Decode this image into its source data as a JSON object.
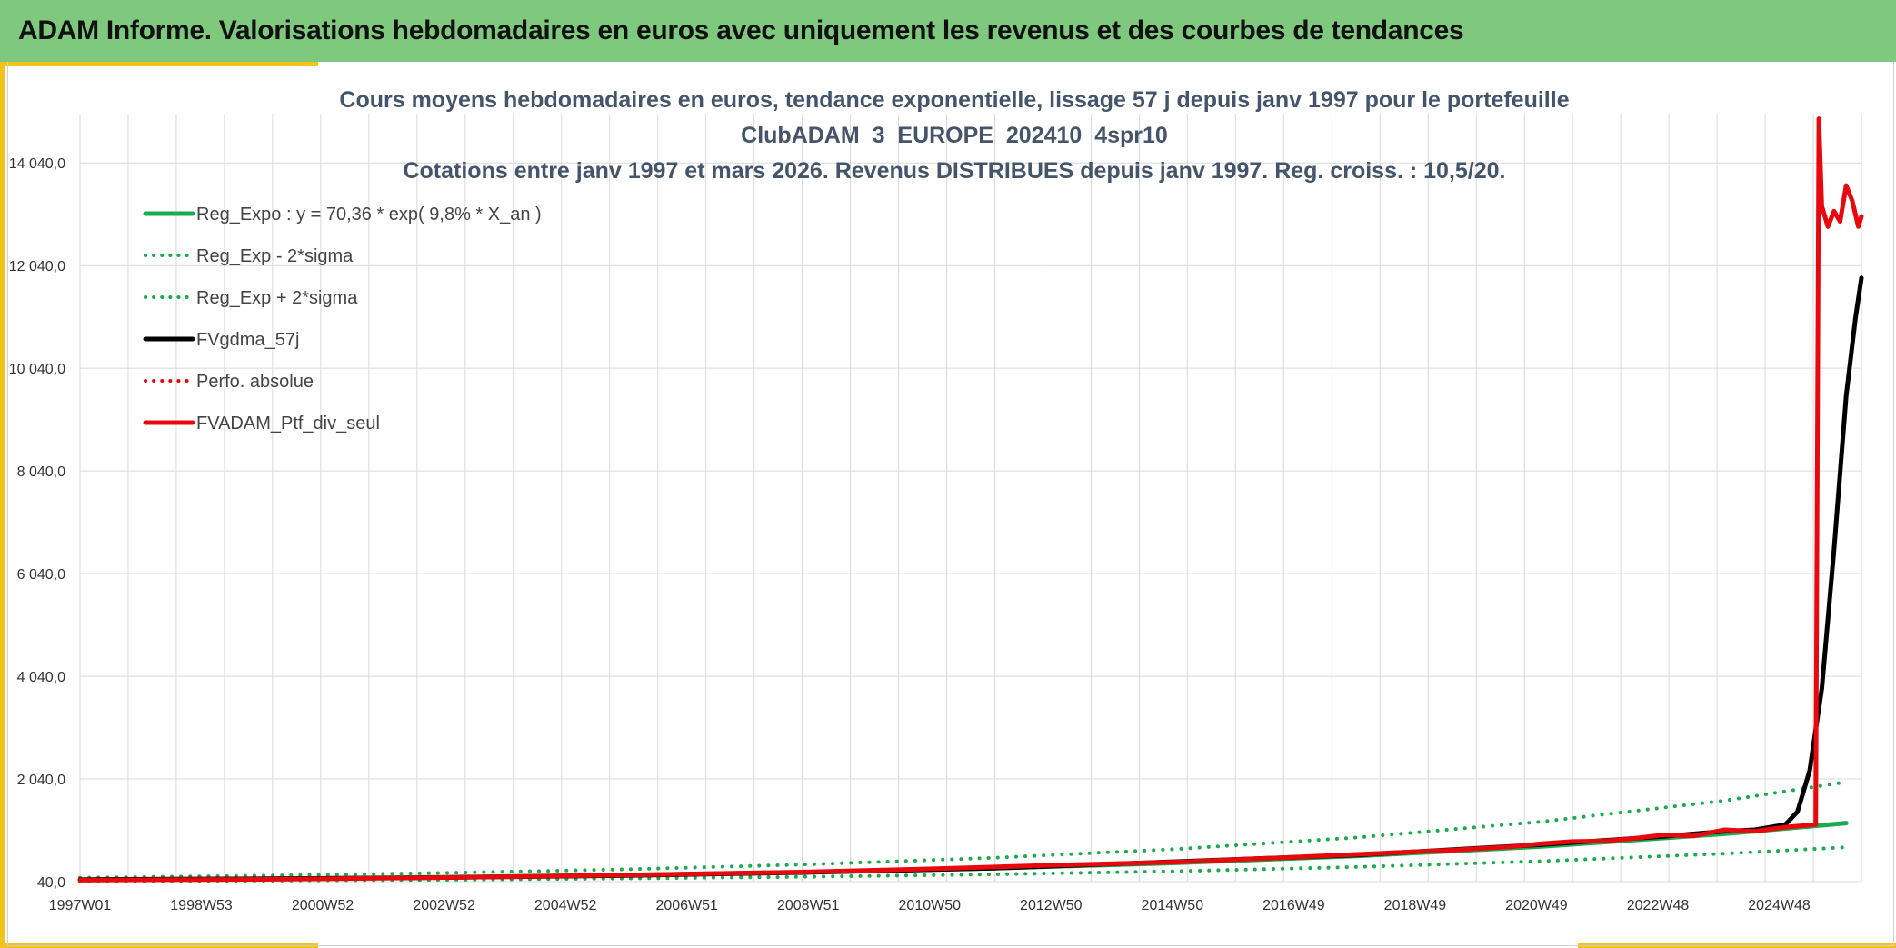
{
  "header": {
    "title": "ADAM Informe. Valorisations hebdomadaires en euros avec uniquement les revenus et des courbes de tendances"
  },
  "colors": {
    "header_bg": "#7fc97f",
    "accent": "#f2c318",
    "reg_green": "#1aab4f",
    "black": "#000000",
    "red": "#e8090e",
    "grid": "#d9d9d9"
  },
  "chart_data": {
    "type": "line",
    "title_lines": [
      "Cours moyens hebdomadaires en euros, tendance exponentielle, lissage 57 j depuis janv 1997 pour le portefeuille",
      "ClubADAM_3_EUROPE_202410_4spr10",
      "Cotations entre janv 1997 et mars 2026. Revenus DISTRIBUES depuis janv 1997. Reg. croiss. : 10,5/20."
    ],
    "x_tick_labels": [
      "1997W01",
      "1998W53",
      "2000W52",
      "2002W52",
      "2004W52",
      "2006W51",
      "2008W51",
      "2010W50",
      "2012W50",
      "2014W50",
      "2016W49",
      "2018W49",
      "2020W49",
      "2022W48",
      "2024W48"
    ],
    "x_range": [
      1997.0,
      2026.25
    ],
    "ylim": [
      40,
      15000
    ],
    "y_ticks": [
      40,
      2040,
      4040,
      6040,
      8040,
      10040,
      12040,
      14040
    ],
    "y_tick_labels": [
      "40,0",
      "2 040,0",
      "4 040,0",
      "6 040,0",
      "8 040,0",
      "10 040,0",
      "12 040,0",
      "14 040,0"
    ],
    "grid": true,
    "legend_position": "top-left",
    "legend": [
      {
        "label": "Reg_Expo : y = 70,36 * exp( 9,8% *  X_an )",
        "color": "#1aab4f",
        "style": "solid"
      },
      {
        "label": "Reg_Exp - 2*sigma",
        "color": "#1aab4f",
        "style": "dotted"
      },
      {
        "label": "Reg_Exp + 2*sigma",
        "color": "#1aab4f",
        "style": "dotted"
      },
      {
        "label": "FVgdma_57j",
        "color": "#000000",
        "style": "solid"
      },
      {
        "label": "Perfo. absolue",
        "color": "#e8090e",
        "style": "dotted"
      },
      {
        "label": "FVADAM_Ptf_div_seul",
        "color": "#e8090e",
        "style": "solid"
      }
    ],
    "series": [
      {
        "name": "Reg_Expo : y = 70,36 * exp( 9,8% *  X_an )",
        "x": [
          1997.0,
          2000.0,
          2003.0,
          2006.0,
          2009.0,
          2012.0,
          2015.0,
          2018.0,
          2021.0,
          2024.0,
          2026.0
        ],
        "values": [
          70,
          94,
          126,
          169,
          226,
          302,
          405,
          542,
          726,
          972,
          1180
        ]
      },
      {
        "name": "Reg_Exp - 2*sigma",
        "x": [
          1997.0,
          2000.0,
          2003.0,
          2006.0,
          2009.0,
          2012.0,
          2015.0,
          2018.0,
          2021.0,
          2024.0,
          2026.0
        ],
        "values": [
          42,
          57,
          76,
          102,
          136,
          182,
          244,
          327,
          438,
          586,
          710
        ]
      },
      {
        "name": "Reg_Exp + 2*sigma",
        "x": [
          1997.0,
          2000.0,
          2003.0,
          2006.0,
          2009.0,
          2012.0,
          2015.0,
          2018.0,
          2021.0,
          2024.0,
          2026.0
        ],
        "values": [
          116,
          156,
          210,
          281,
          376,
          503,
          674,
          902,
          1209,
          1618,
          1980
        ]
      },
      {
        "name": "FVgdma_57j",
        "x": [
          1997.0,
          2000.0,
          2003.0,
          2006.0,
          2009.0,
          2012.0,
          2015.0,
          2018.0,
          2021.0,
          2023.0,
          2024.0,
          2024.5,
          2025.0,
          2025.2,
          2025.4,
          2025.6,
          2025.8,
          2026.0,
          2026.15,
          2026.25
        ],
        "values": [
          80,
          95,
          120,
          160,
          220,
          300,
          430,
          560,
          760,
          920,
          1020,
          1050,
          1150,
          1400,
          2200,
          3800,
          6500,
          9500,
          11000,
          11800
        ]
      },
      {
        "name": "FVADAM_Ptf_div_seul",
        "x": [
          1997.0,
          2000.0,
          2003.0,
          2006.0,
          2009.0,
          2011.0,
          2013.0,
          2015.0,
          2017.0,
          2018.5,
          2019.5,
          2020.5,
          2021.0,
          2021.5,
          2022.0,
          2022.5,
          2023.0,
          2023.5,
          2024.0,
          2024.5,
          2025.0,
          2025.5,
          2025.55,
          2025.6,
          2025.7,
          2025.8,
          2025.9,
          2026.0,
          2026.1,
          2026.2,
          2026.25
        ],
        "values": [
          70,
          85,
          120,
          170,
          230,
          290,
          360,
          420,
          520,
          600,
          650,
          720,
          780,
          820,
          830,
          880,
          950,
          930,
          1050,
          1020,
          1100,
          1150,
          14900,
          13200,
          12800,
          13100,
          12900,
          13600,
          13300,
          12800,
          13000
        ]
      }
    ]
  }
}
